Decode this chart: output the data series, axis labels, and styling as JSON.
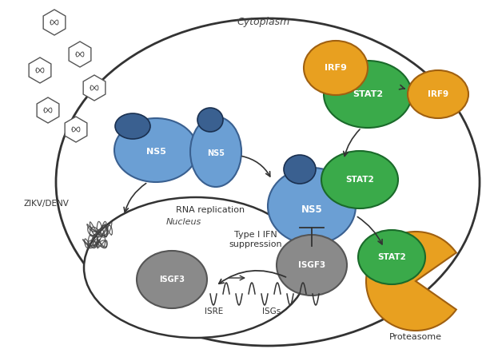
{
  "fig_width": 6.23,
  "fig_height": 4.42,
  "dpi": 100,
  "bg_color": "#ffffff",
  "colors": {
    "ns5_blue_light": "#6b9fd4",
    "ns5_blue_dark": "#3a6090",
    "stat2_green": "#3aaa4a",
    "irf9_orange": "#e8a020",
    "isgf3_gray": "#8a8a8a",
    "proteasome_orange": "#e8a020",
    "outline": "#333333",
    "arrow": "#333333",
    "text": "#333333",
    "virus_outline": "#555555"
  },
  "labels": {
    "cytoplasm": "Cytoplasm",
    "nucleus": "Nucleus",
    "zikv": "ZIKV/DENV",
    "rna_rep": "RNA replication",
    "type1ifn": "Type I IFN\nsuppression",
    "proteasome": "Proteasome",
    "isre": "ISRE",
    "isgs": "ISGs",
    "ns5": "NS5",
    "stat2": "STAT2",
    "irf9": "IRF9",
    "isgf3": "ISGF3"
  }
}
